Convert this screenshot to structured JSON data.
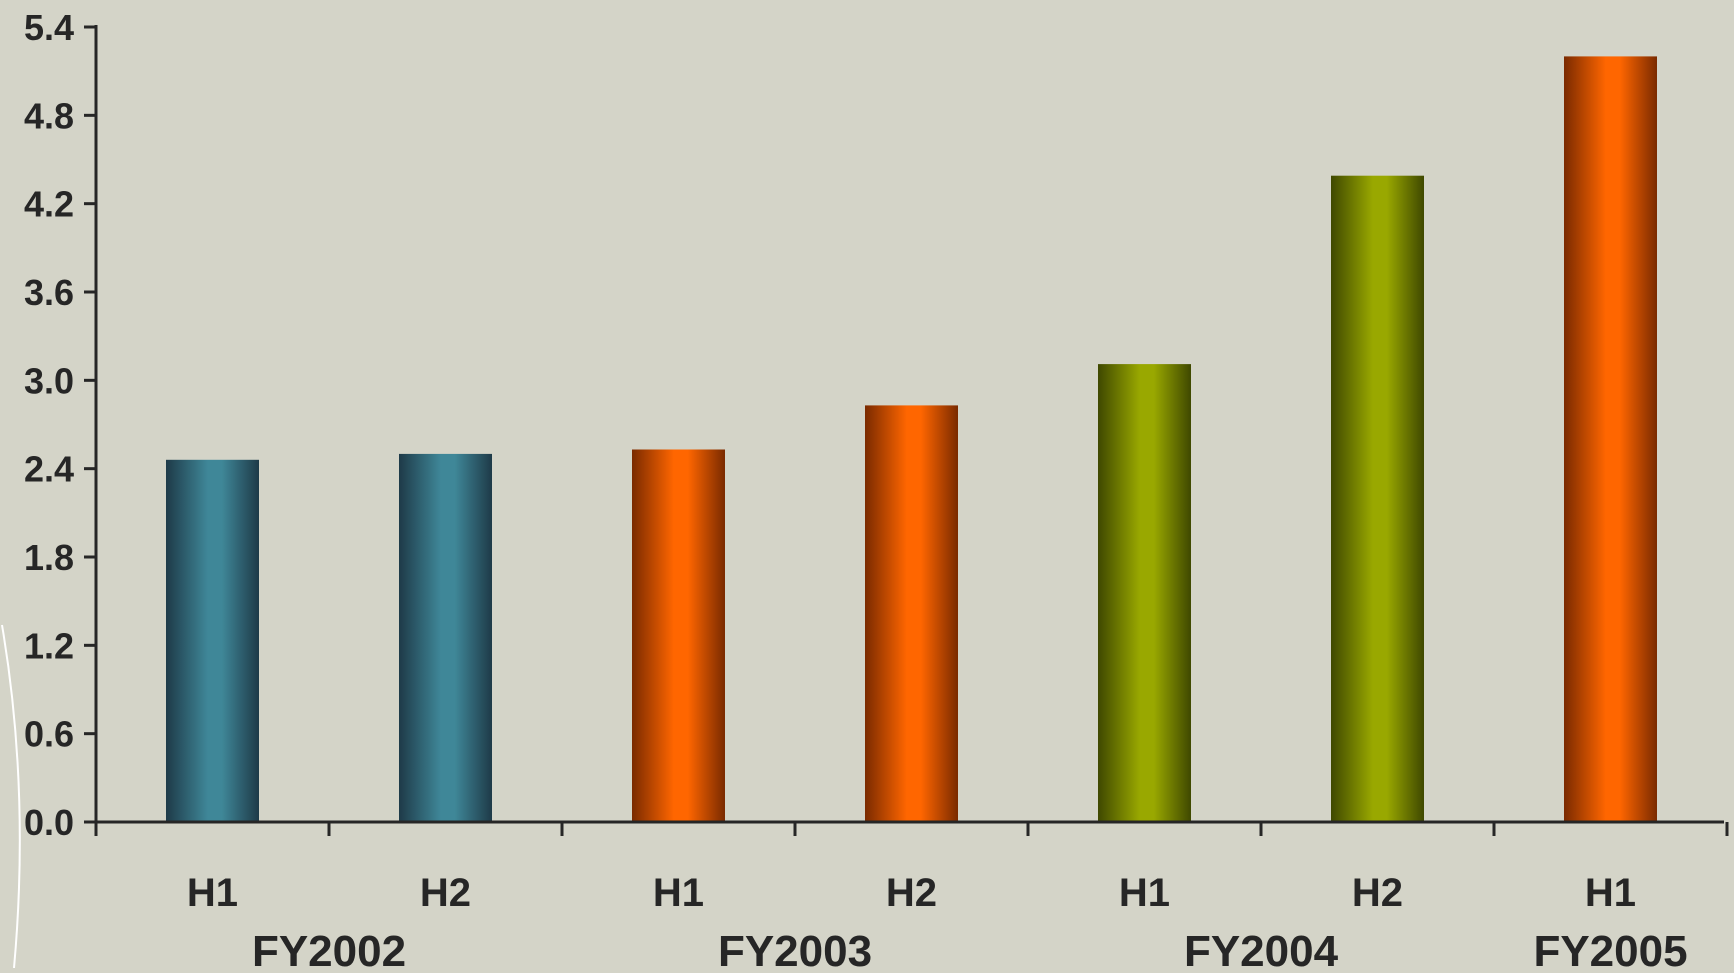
{
  "chart_data": {
    "type": "bar",
    "title": "",
    "xlabel": "",
    "ylabel": "",
    "ylim": [
      0,
      5.4
    ],
    "yticks": [
      "0.0",
      "0.6",
      "1.2",
      "1.8",
      "2.4",
      "3.0",
      "3.6",
      "4.2",
      "4.8",
      "5.4"
    ],
    "grid": false,
    "legend": "none",
    "categories": [
      "H1",
      "H2",
      "H1",
      "H2",
      "H1",
      "H2",
      "H1"
    ],
    "groups": [
      {
        "label": "FY2002",
        "count": 2
      },
      {
        "label": "FY2003",
        "count": 2
      },
      {
        "label": "FY2004",
        "count": 2
      },
      {
        "label": "FY2005",
        "count": 1
      }
    ],
    "values": [
      2.46,
      2.5,
      2.53,
      2.83,
      3.11,
      4.39,
      5.2
    ],
    "colors": [
      "#3f8798",
      "#3f8798",
      "#ff6600",
      "#ff6600",
      "#99a800",
      "#99a800",
      "#ff6600"
    ],
    "dark_colors": [
      "#1e3a48",
      "#1e3a48",
      "#7a2a00",
      "#7a2a00",
      "#3f4800",
      "#3f4800",
      "#7a2a00"
    ]
  }
}
